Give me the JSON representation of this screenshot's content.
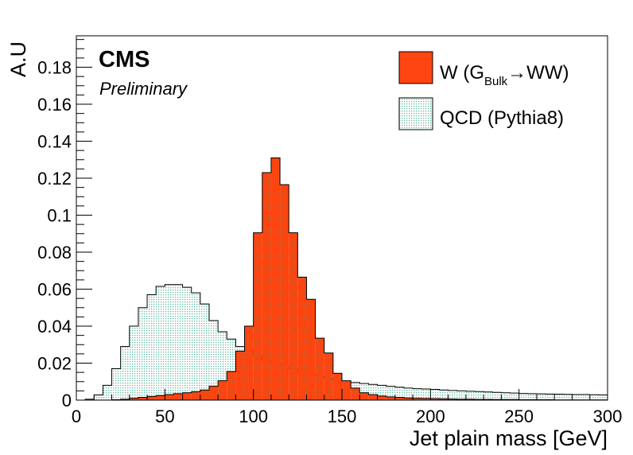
{
  "chart_data": {
    "type": "histogram",
    "experiment": "CMS",
    "status": "Preliminary",
    "xlabel": "Jet plain mass [GeV]",
    "ylabel": "A.U",
    "xlim": [
      0,
      300
    ],
    "ylim": [
      0,
      0.197
    ],
    "bin_width": 5,
    "x_ticks": [
      0,
      50,
      100,
      150,
      200,
      250,
      300
    ],
    "x_tick_labels": [
      "0",
      "50",
      "100",
      "150",
      "200",
      "250",
      "300"
    ],
    "y_ticks": [
      0,
      0.02,
      0.04,
      0.06,
      0.08,
      0.1,
      0.12,
      0.14,
      0.16,
      0.18
    ],
    "y_tick_labels": [
      "0",
      "0.02",
      "0.04",
      "0.06",
      "0.08",
      "0.1",
      "0.12",
      "0.14",
      "0.16",
      "0.18"
    ],
    "legend_position": "top-right",
    "series": [
      {
        "name": "QCD (Pythia8)",
        "legend_label": "QCD (Pythia8)",
        "color": "#d8f0ea",
        "style": "dotted-fill",
        "values": [
          0,
          0.0005,
          0.0028,
          0.008,
          0.017,
          0.029,
          0.04,
          0.05,
          0.057,
          0.0615,
          0.0625,
          0.0625,
          0.061,
          0.058,
          0.052,
          0.043,
          0.037,
          0.033,
          0.029,
          0.027,
          0.024,
          0.022,
          0.02,
          0.018,
          0.017,
          0.015,
          0.014,
          0.013,
          0.012,
          0.011,
          0.01,
          0.0095,
          0.009,
          0.0085,
          0.008,
          0.0075,
          0.007,
          0.0065,
          0.0062,
          0.006,
          0.0058,
          0.0055,
          0.0052,
          0.005,
          0.0048,
          0.0046,
          0.0044,
          0.0042,
          0.004,
          0.0038,
          0.0036,
          0.0035,
          0.0034,
          0.0033,
          0.0032,
          0.0031,
          0.003,
          0.003,
          0.0029,
          0.0028
        ]
      },
      {
        "name": "W (G_Bulk→WW)",
        "legend_label_main": "W (G",
        "legend_label_sub": "Bulk",
        "legend_label_tail": "→WW)",
        "color": "#ff4510",
        "style": "solid-fill",
        "values": [
          0,
          0,
          0,
          0,
          0.0002,
          0.0005,
          0.001,
          0.0015,
          0.002,
          0.0025,
          0.003,
          0.0035,
          0.004,
          0.0045,
          0.0055,
          0.0075,
          0.0105,
          0.0155,
          0.0265,
          0.04,
          0.0905,
          0.123,
          0.131,
          0.1165,
          0.0905,
          0.0665,
          0.0545,
          0.0335,
          0.0255,
          0.0145,
          0.0105,
          0.0065,
          0.004,
          0.003,
          0.0022,
          0.0018,
          0.0015,
          0.0012,
          0.001,
          0.0009,
          0.0008,
          0.0007,
          0.0006,
          0.0005,
          0.0005,
          0.0004,
          0.0004,
          0.0003,
          0.0003,
          0.0003,
          0.0002,
          0.0002,
          0.0002,
          0.0002,
          0.0001,
          0.0001,
          0.0001,
          0.0001,
          0.0001,
          0.0001
        ]
      }
    ]
  }
}
